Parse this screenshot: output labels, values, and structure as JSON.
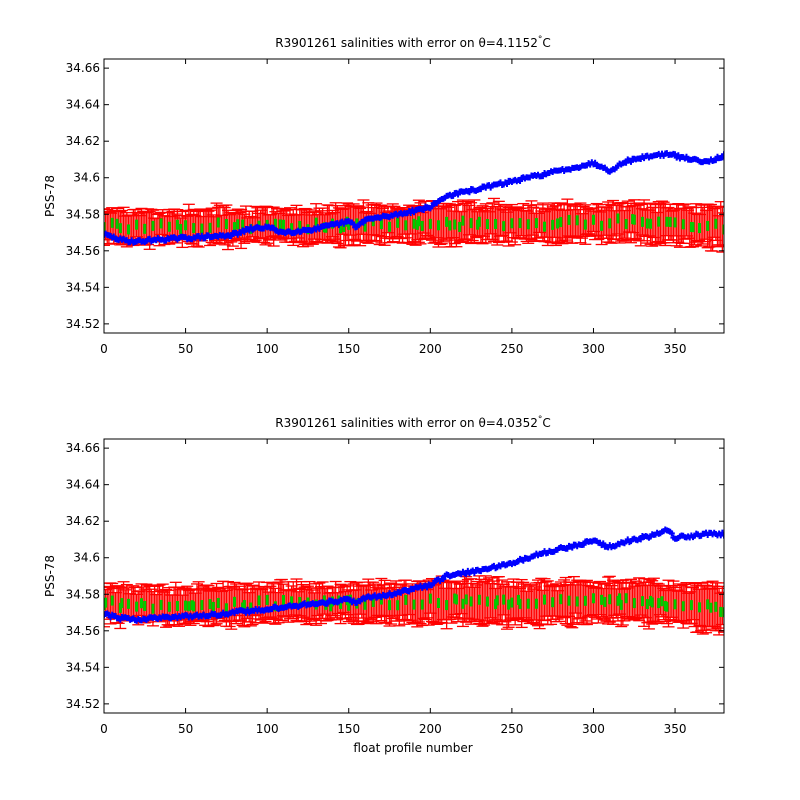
{
  "colors": {
    "background": "#ffffff",
    "axes": "#000000",
    "float_series": "#0000ff",
    "error_bars": "#ff0000",
    "climatology_markers": "#00cc00"
  },
  "chart_data": [
    {
      "type": "scatter",
      "title_prefix": "R3901261 salinities with error on ",
      "theta_symbol": "θ",
      "theta_value": "=4.1152",
      "degree_symbol": "°",
      "temp_unit": "C",
      "xlabel": "",
      "ylabel": "PSS-78",
      "xlim": [
        0,
        380
      ],
      "ylim": [
        34.515,
        34.665
      ],
      "xticks": [
        0,
        50,
        100,
        150,
        200,
        250,
        300,
        350
      ],
      "yticks": [
        34.52,
        34.54,
        34.56,
        34.58,
        34.6,
        34.62,
        34.64,
        34.66
      ],
      "ytick_labels": [
        "34.52",
        "34.54",
        "34.56",
        "34.58",
        "34.6",
        "34.62",
        "34.64",
        "34.66"
      ],
      "grid": false,
      "legend": "none",
      "series": [
        {
          "role": "float",
          "marker": "+",
          "x": [
            0,
            10,
            20,
            30,
            50,
            70,
            80,
            90,
            100,
            110,
            120,
            130,
            140,
            150,
            155,
            160,
            175,
            190,
            200,
            210,
            230,
            250,
            270,
            290,
            300,
            310,
            320,
            335,
            345,
            350,
            360,
            370,
            380
          ],
          "y": [
            34.569,
            34.566,
            34.565,
            34.566,
            34.567,
            34.568,
            34.569,
            34.572,
            34.573,
            34.57,
            34.571,
            34.572,
            34.574,
            34.576,
            34.573,
            34.577,
            34.579,
            34.582,
            34.584,
            34.59,
            34.594,
            34.598,
            34.602,
            34.606,
            34.608,
            34.604,
            34.609,
            34.612,
            34.613,
            34.612,
            34.61,
            34.609,
            34.612
          ]
        },
        {
          "role": "climatology",
          "marker": "errorbar",
          "x": [
            0,
            20,
            40,
            60,
            80,
            100,
            120,
            140,
            160,
            180,
            200,
            220,
            240,
            260,
            280,
            300,
            320,
            340,
            360,
            380
          ],
          "y": [
            34.574,
            34.573,
            34.573,
            34.574,
            34.573,
            34.574,
            34.573,
            34.574,
            34.575,
            34.575,
            34.575,
            34.575,
            34.575,
            34.575,
            34.575,
            34.575,
            34.576,
            34.574,
            34.574,
            34.573
          ],
          "err": [
            0.009,
            0.009,
            0.008,
            0.009,
            0.009,
            0.009,
            0.009,
            0.009,
            0.01,
            0.009,
            0.01,
            0.01,
            0.01,
            0.009,
            0.01,
            0.009,
            0.01,
            0.01,
            0.01,
            0.011
          ]
        }
      ]
    },
    {
      "type": "scatter",
      "title_prefix": "R3901261 salinities with error on ",
      "theta_symbol": "θ",
      "theta_value": "=4.0352",
      "degree_symbol": "°",
      "temp_unit": "C",
      "xlabel": "float profile number",
      "ylabel": "PSS-78",
      "xlim": [
        0,
        380
      ],
      "ylim": [
        34.515,
        34.665
      ],
      "xticks": [
        0,
        50,
        100,
        150,
        200,
        250,
        300,
        350
      ],
      "yticks": [
        34.52,
        34.54,
        34.56,
        34.58,
        34.6,
        34.62,
        34.64,
        34.66
      ],
      "ytick_labels": [
        "34.52",
        "34.54",
        "34.56",
        "34.58",
        "34.6",
        "34.62",
        "34.64",
        "34.66"
      ],
      "grid": false,
      "legend": "none",
      "series": [
        {
          "role": "float",
          "marker": "+",
          "x": [
            0,
            10,
            20,
            30,
            50,
            70,
            80,
            90,
            100,
            110,
            120,
            130,
            140,
            150,
            155,
            160,
            175,
            190,
            200,
            210,
            230,
            250,
            270,
            290,
            300,
            310,
            320,
            335,
            345,
            350,
            360,
            370,
            380
          ],
          "y": [
            34.569,
            34.567,
            34.566,
            34.567,
            34.568,
            34.569,
            34.57,
            34.571,
            34.572,
            34.573,
            34.574,
            34.575,
            34.576,
            34.577,
            34.575,
            34.578,
            34.58,
            34.583,
            34.585,
            34.59,
            34.593,
            34.597,
            34.603,
            34.607,
            34.609,
            34.606,
            34.609,
            34.612,
            34.615,
            34.611,
            34.612,
            34.613,
            34.613
          ]
        },
        {
          "role": "climatology",
          "marker": "errorbar",
          "x": [
            0,
            20,
            40,
            60,
            80,
            100,
            120,
            140,
            160,
            180,
            200,
            220,
            240,
            260,
            280,
            300,
            320,
            340,
            360,
            380
          ],
          "y": [
            34.575,
            34.574,
            34.574,
            34.575,
            34.574,
            34.575,
            34.575,
            34.575,
            34.576,
            34.575,
            34.576,
            34.576,
            34.576,
            34.575,
            34.576,
            34.576,
            34.576,
            34.575,
            34.574,
            34.572
          ],
          "err": [
            0.01,
            0.009,
            0.009,
            0.01,
            0.01,
            0.01,
            0.01,
            0.01,
            0.01,
            0.01,
            0.011,
            0.011,
            0.011,
            0.011,
            0.011,
            0.011,
            0.011,
            0.011,
            0.012,
            0.013
          ]
        }
      ]
    }
  ]
}
